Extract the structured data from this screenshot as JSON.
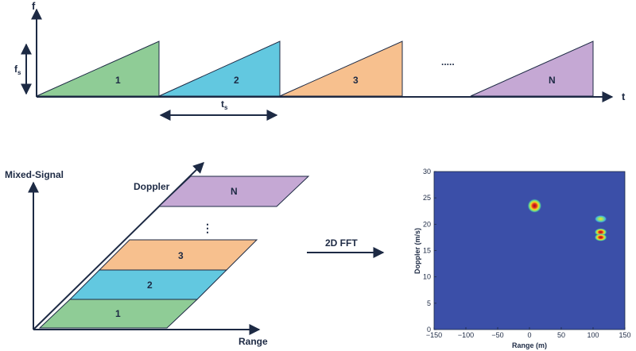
{
  "chirp_diagram": {
    "axis_f": "f",
    "axis_t": "t",
    "fs_main": "f",
    "fs_sub": "s",
    "ts_main": "t",
    "ts_sub": "s",
    "ellipsis": ".....",
    "chirps": [
      {
        "label": "1",
        "color": "#8fcc96"
      },
      {
        "label": "2",
        "color": "#62c8e0"
      },
      {
        "label": "3",
        "color": "#f7c08e"
      },
      {
        "label": "N",
        "color": "#c5a8d4"
      }
    ]
  },
  "cube_diagram": {
    "y_label": "Mixed-Signal",
    "diag_label": "Doppler",
    "x_label": "Range",
    "ellipsis": "⋮",
    "layers": [
      {
        "label": "1",
        "color": "#8fcc96"
      },
      {
        "label": "2",
        "color": "#62c8e0"
      },
      {
        "label": "3",
        "color": "#f7c08e"
      },
      {
        "label": "N",
        "color": "#c5a8d4"
      }
    ]
  },
  "fft_label": "2D FFT",
  "chart_data": {
    "type": "heatmap",
    "xlabel": "Range (m)",
    "ylabel": "Doppler (m/s)",
    "xlim": [
      -150,
      150
    ],
    "ylim": [
      0,
      30
    ],
    "xticks": [
      -150,
      -100,
      -50,
      0,
      50,
      100,
      150
    ],
    "yticks": [
      0,
      5,
      10,
      15,
      20,
      25,
      30
    ],
    "background_color": "#3b4fa8",
    "targets": [
      {
        "range": 8,
        "doppler": 23.5
      },
      {
        "range": 112,
        "doppler": 21
      },
      {
        "range": 112,
        "doppler": 18.5
      },
      {
        "range": 112,
        "doppler": 17.5
      }
    ]
  }
}
